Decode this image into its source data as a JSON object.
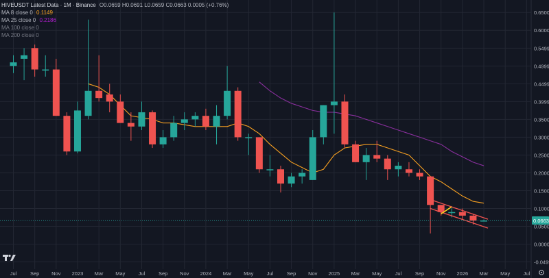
{
  "header": {
    "symbol": "HIVEUSDT Latest Data · 1M · Binance",
    "ohlc": "O0.0659 H0.0691 L0.0659 C0.0663 0.0005 (+0.76%)"
  },
  "indicators": [
    {
      "label": "MA 8 close 0",
      "value": "0.1149",
      "color": "#f7a021"
    },
    {
      "label": "MA 25 close 0",
      "value": "0.2186",
      "color": "#b01ecf"
    },
    {
      "label": "MA 100 close 0",
      "value": "",
      "color": "#787b86"
    },
    {
      "label": "MA 200 close 0",
      "value": "",
      "color": "#787b86"
    }
  ],
  "colors": {
    "background": "#131722",
    "grid": "#232733",
    "up": "#26a69a",
    "down": "#ef5350",
    "ma8": "#f7a021",
    "ma25": "#8a2f9e",
    "channel": "#ef5350",
    "highlight": "#f7d21f",
    "axis_text": "#b2b5be",
    "last_price_bg": "#26a69a"
  },
  "last_price_label": "0.0663",
  "icons": {
    "logo": "tradingview-logo-icon",
    "settings": "gear-icon"
  },
  "chart_data": {
    "type": "candlestick",
    "title": "HIVEUSDT Latest Data · 1M · Binance",
    "interval": "1M",
    "exchange": "Binance",
    "y_ticks": [
      -0.0499,
      0.0,
      0.05,
      0.1,
      0.15,
      0.2,
      0.25,
      0.3,
      0.35,
      0.3999,
      0.4499,
      0.4999,
      0.5499,
      0.6,
      0.65
    ],
    "y_tick_labels": [
      "-0.0499",
      "0.0000",
      "0.0500",
      "0.1000",
      "0.1500",
      "0.2000",
      "0.2500",
      "0.3000",
      "0.3500",
      "0.3999",
      "0.4499",
      "0.4999",
      "0.5499",
      "0.6000",
      "0.6500"
    ],
    "ylim": [
      -0.07,
      0.685
    ],
    "x_tick_labels": [
      "Jul",
      "Sep",
      "Nov",
      "2023",
      "Mar",
      "May",
      "Jul",
      "Sep",
      "Nov",
      "2024",
      "Mar",
      "May",
      "Jul",
      "Sep",
      "Nov",
      "2025",
      "Mar",
      "May",
      "Jul",
      "Sep",
      "Nov",
      "2026",
      "Mar",
      "May",
      "Jul"
    ],
    "x_tick_months": [
      "2022-07",
      "2022-09",
      "2022-11",
      "2023-01",
      "2023-03",
      "2023-05",
      "2023-07",
      "2023-09",
      "2023-11",
      "2024-01",
      "2024-03",
      "2024-05",
      "2024-07",
      "2024-09",
      "2024-11",
      "2025-01",
      "2025-03",
      "2025-05",
      "2025-07",
      "2025-09",
      "2025-11",
      "2026-01",
      "2026-03",
      "2026-05",
      "2026-07"
    ],
    "candles": [
      {
        "t": "2022-07",
        "o": 0.5,
        "h": 0.53,
        "l": 0.48,
        "c": 0.51
      },
      {
        "t": "2022-08",
        "o": 0.52,
        "h": 0.55,
        "l": 0.46,
        "c": 0.53
      },
      {
        "t": "2022-09",
        "o": 0.55,
        "h": 0.56,
        "l": 0.47,
        "c": 0.49
      },
      {
        "t": "2022-10",
        "o": 0.49,
        "h": 0.53,
        "l": 0.47,
        "c": 0.49
      },
      {
        "t": "2022-11",
        "o": 0.49,
        "h": 0.52,
        "l": 0.36,
        "c": 0.36
      },
      {
        "t": "2022-12",
        "o": 0.36,
        "h": 0.37,
        "l": 0.25,
        "c": 0.26
      },
      {
        "t": "2023-01",
        "o": 0.26,
        "h": 0.4,
        "l": 0.255,
        "c": 0.375
      },
      {
        "t": "2023-02",
        "o": 0.36,
        "h": 0.63,
        "l": 0.35,
        "c": 0.43
      },
      {
        "t": "2023-03",
        "o": 0.43,
        "h": 0.53,
        "l": 0.4,
        "c": 0.41
      },
      {
        "t": "2023-04",
        "o": 0.42,
        "h": 0.45,
        "l": 0.37,
        "c": 0.4
      },
      {
        "t": "2023-05",
        "o": 0.4,
        "h": 0.42,
        "l": 0.34,
        "c": 0.34
      },
      {
        "t": "2023-06",
        "o": 0.34,
        "h": 0.37,
        "l": 0.29,
        "c": 0.33
      },
      {
        "t": "2023-07",
        "o": 0.33,
        "h": 0.4,
        "l": 0.32,
        "c": 0.37
      },
      {
        "t": "2023-08",
        "o": 0.37,
        "h": 0.375,
        "l": 0.27,
        "c": 0.28
      },
      {
        "t": "2023-09",
        "o": 0.28,
        "h": 0.32,
        "l": 0.27,
        "c": 0.3
      },
      {
        "t": "2023-10",
        "o": 0.3,
        "h": 0.36,
        "l": 0.29,
        "c": 0.34
      },
      {
        "t": "2023-11",
        "o": 0.34,
        "h": 0.37,
        "l": 0.32,
        "c": 0.35
      },
      {
        "t": "2023-12",
        "o": 0.35,
        "h": 0.37,
        "l": 0.33,
        "c": 0.36
      },
      {
        "t": "2023-12",
        "o": 0.36,
        "h": 0.38,
        "l": 0.32,
        "c": 0.33
      },
      {
        "t": "2024-01",
        "o": 0.33,
        "h": 0.39,
        "l": 0.28,
        "c": 0.36
      },
      {
        "t": "2024-02",
        "o": 0.36,
        "h": 0.5,
        "l": 0.35,
        "c": 0.43
      },
      {
        "t": "2024-03",
        "o": 0.43,
        "h": 0.44,
        "l": 0.29,
        "c": 0.3
      },
      {
        "t": "2024-04",
        "o": 0.3,
        "h": 0.31,
        "l": 0.25,
        "c": 0.3
      },
      {
        "t": "2024-05",
        "o": 0.3,
        "h": 0.3,
        "l": 0.2,
        "c": 0.21
      },
      {
        "t": "2024-06",
        "o": 0.21,
        "h": 0.25,
        "l": 0.19,
        "c": 0.21
      },
      {
        "t": "2024-07",
        "o": 0.21,
        "h": 0.22,
        "l": 0.145,
        "c": 0.17
      },
      {
        "t": "2024-08",
        "o": 0.17,
        "h": 0.2,
        "l": 0.16,
        "c": 0.19
      },
      {
        "t": "2024-09",
        "o": 0.19,
        "h": 0.21,
        "l": 0.17,
        "c": 0.2
      },
      {
        "t": "2024-10",
        "o": 0.18,
        "h": 0.32,
        "l": 0.18,
        "c": 0.3
      },
      {
        "t": "2024-11",
        "o": 0.3,
        "h": 0.39,
        "l": 0.28,
        "c": 0.39
      },
      {
        "t": "2025-01",
        "o": 0.39,
        "h": 0.65,
        "l": 0.31,
        "c": 0.4
      },
      {
        "t": "2025-02",
        "o": 0.4,
        "h": 0.42,
        "l": 0.27,
        "c": 0.28
      },
      {
        "t": "2025-03",
        "o": 0.28,
        "h": 0.29,
        "l": 0.23,
        "c": 0.23
      },
      {
        "t": "2025-04",
        "o": 0.23,
        "h": 0.27,
        "l": 0.18,
        "c": 0.25
      },
      {
        "t": "2025-05",
        "o": 0.25,
        "h": 0.29,
        "l": 0.23,
        "c": 0.24
      },
      {
        "t": "2025-06",
        "o": 0.24,
        "h": 0.25,
        "l": 0.18,
        "c": 0.21
      },
      {
        "t": "2025-07",
        "o": 0.21,
        "h": 0.23,
        "l": 0.19,
        "c": 0.22
      },
      {
        "t": "2025-08",
        "o": 0.21,
        "h": 0.23,
        "l": 0.19,
        "c": 0.2
      },
      {
        "t": "2025-09",
        "o": 0.2,
        "h": 0.21,
        "l": 0.18,
        "c": 0.19
      },
      {
        "t": "2025-10",
        "o": 0.19,
        "h": 0.19,
        "l": 0.03,
        "c": 0.11
      },
      {
        "t": "2025-11",
        "o": 0.11,
        "h": 0.11,
        "l": 0.08,
        "c": 0.09
      },
      {
        "t": "2025-12",
        "o": 0.09,
        "h": 0.1,
        "l": 0.075,
        "c": 0.09
      },
      {
        "t": "2026-01",
        "o": 0.09,
        "h": 0.1,
        "l": 0.07,
        "c": 0.08
      },
      {
        "t": "2026-02",
        "o": 0.08,
        "h": 0.085,
        "l": 0.055,
        "c": 0.066
      },
      {
        "t": "2026-03",
        "o": 0.0659,
        "h": 0.0691,
        "l": 0.0659,
        "c": 0.0663
      }
    ],
    "series": [
      {
        "name": "MA 8 close 0",
        "values": [
          null,
          null,
          null,
          null,
          null,
          null,
          null,
          0.45,
          0.44,
          0.42,
          0.39,
          0.36,
          0.355,
          0.35,
          0.34,
          0.34,
          0.335,
          0.33,
          0.33,
          0.33,
          0.33,
          0.34,
          0.33,
          0.31,
          0.28,
          0.255,
          0.23,
          0.215,
          0.2,
          0.21,
          0.25,
          0.27,
          0.275,
          0.28,
          0.28,
          0.27,
          0.26,
          0.25,
          0.22,
          0.19,
          0.175,
          0.155,
          0.135,
          0.12,
          0.115
        ]
      },
      {
        "name": "MA 25 close 0",
        "values": [
          null,
          null,
          null,
          null,
          null,
          null,
          null,
          null,
          null,
          null,
          null,
          null,
          null,
          null,
          null,
          null,
          null,
          null,
          null,
          null,
          null,
          null,
          null,
          0.455,
          0.43,
          0.41,
          0.395,
          0.385,
          0.375,
          0.37,
          0.37,
          0.365,
          0.36,
          0.35,
          0.34,
          0.33,
          0.32,
          0.31,
          0.3,
          0.29,
          0.28,
          0.26,
          0.245,
          0.23,
          0.22
        ]
      }
    ],
    "channel": [
      {
        "name": "upper",
        "points": [
          [
            "2025-10",
            0.125
          ],
          [
            "2026-03",
            0.07
          ]
        ]
      },
      {
        "name": "lower",
        "points": [
          [
            "2025-10",
            0.1
          ],
          [
            "2026-03",
            0.045
          ]
        ]
      }
    ],
    "highlight_segment": {
      "points": [
        [
          "2025-11",
          0.085
        ],
        [
          "2025-12",
          0.105
        ]
      ]
    },
    "last_price": 0.0663,
    "grid": true,
    "legend_position": "top-left"
  }
}
